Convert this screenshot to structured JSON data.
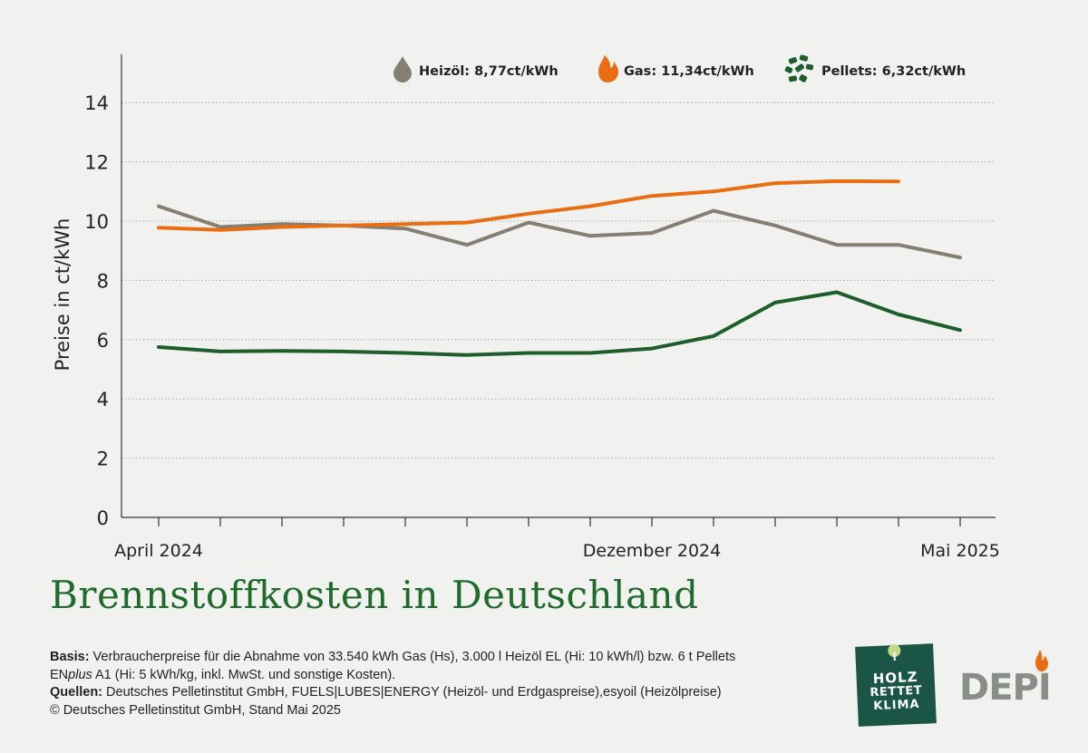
{
  "chart_data": {
    "type": "line",
    "title": "Brennstoffkosten in Deutschland",
    "ylabel": "Preise in ct/kWh",
    "ylim": [
      0,
      15
    ],
    "yticks": [
      0,
      2,
      4,
      6,
      8,
      10,
      12,
      14
    ],
    "grid": "horizontal-dotted",
    "legend_position": "top",
    "x_tick_labels": [
      "April 2024",
      "Dezember 2024",
      "Mai 2025"
    ],
    "x_tick_label_months": [
      0,
      8,
      13
    ],
    "x_months": [
      "2024-04",
      "2024-05",
      "2024-06",
      "2024-07",
      "2024-08",
      "2024-09",
      "2024-10",
      "2024-11",
      "2024-12",
      "2025-01",
      "2025-02",
      "2025-03",
      "2025-04",
      "2025-05"
    ],
    "series": [
      {
        "name": "Heizöl",
        "legend": "Heizöl: 8,77ct/kWh",
        "color": "#857e72",
        "icon": "oil-drop-icon",
        "values": [
          10.5,
          9.8,
          9.9,
          9.85,
          9.75,
          9.2,
          9.95,
          9.5,
          9.6,
          10.35,
          9.85,
          9.2,
          9.2,
          8.77
        ]
      },
      {
        "name": "Gas",
        "legend": "Gas: 11,34ct/kWh",
        "color": "#ea6d12",
        "icon": "flame-icon",
        "values": [
          9.78,
          9.7,
          9.8,
          9.85,
          9.9,
          9.95,
          10.25,
          10.5,
          10.85,
          11.0,
          11.28,
          11.35,
          11.34,
          null
        ]
      },
      {
        "name": "Pellets",
        "legend": "Pellets: 6,32ct/kWh",
        "color": "#1d5e2c",
        "icon": "pellets-icon",
        "values": [
          5.75,
          5.6,
          5.62,
          5.6,
          5.55,
          5.48,
          5.55,
          5.55,
          5.7,
          6.12,
          7.25,
          7.6,
          6.85,
          6.32
        ]
      }
    ]
  },
  "footer": {
    "basis_label": "Basis:",
    "basis_text_1": " Verbraucherpreise für die Abnahme von 33.540 kWh Gas (Hs), 3.000 l Heizöl EL (Hi: 10 kWh/l) bzw. 6 t Pellets",
    "basis_text_2a": "EN",
    "basis_text_2b": "plus",
    "basis_text_2c": " A1 (Hi: 5 kWh/kg, inkl. MwSt. und sonstige Kosten).",
    "sources_label": "Quellen:",
    "sources_text": " Deutsches Pelletinstitut GmbH, FUELS|LUBES|ENERGY (Heizöl- und Erdgaspreise),esyoil (Heizölpreise)",
    "copyright": "© Deutsches Pelletinstitut GmbH, Stand Mai 2025"
  },
  "logos": {
    "holz_line1": "HOLZ",
    "holz_line2": "RETTET",
    "holz_line3": "KLIMA",
    "depi": "DEPI"
  }
}
